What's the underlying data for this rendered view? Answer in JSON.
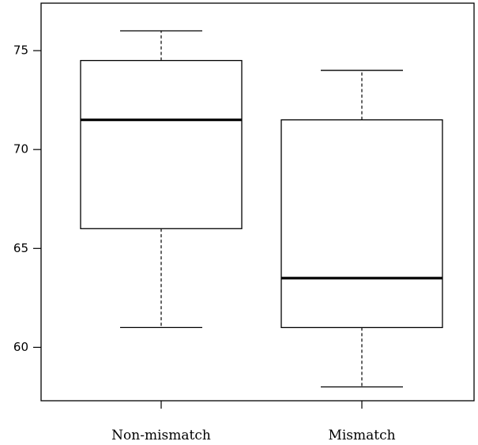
{
  "chart_data": {
    "type": "boxplot",
    "categories": [
      "Non-mismatch",
      "Mismatch"
    ],
    "boxes": [
      {
        "category": "Non-mismatch",
        "min": 61,
        "q1": 66,
        "median": 71.5,
        "q3": 74.5,
        "max": 76
      },
      {
        "category": "Mismatch",
        "min": 58,
        "q1": 61,
        "median": 63.5,
        "q3": 71.5,
        "max": 74
      }
    ],
    "y_ticks": [
      60,
      65,
      70,
      75
    ],
    "y_tick_labels": [
      "60",
      "65",
      "70",
      "75"
    ],
    "ylim": [
      57.3,
      77.4
    ],
    "title": "",
    "xlabel": "",
    "ylabel": "",
    "grid": false
  }
}
